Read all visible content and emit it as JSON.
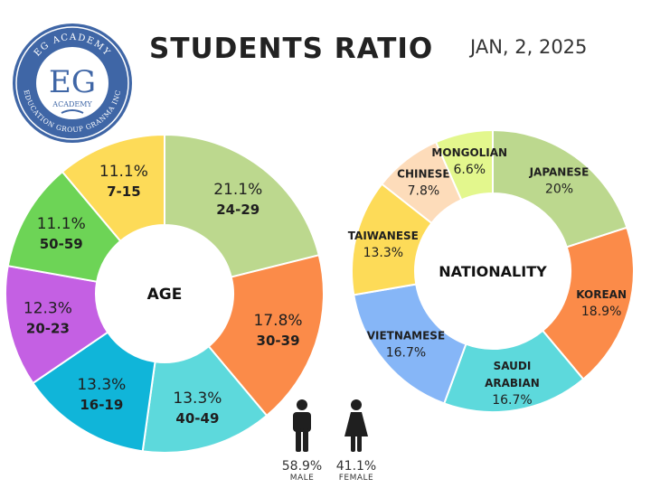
{
  "header": {
    "title": "STUDENTS RATIO",
    "date": "JAN, 2, 2025"
  },
  "logo": {
    "initials": "EG",
    "ring_top": "EG ACADEMY",
    "ring_bottom": "EDUCATION GROUP GRANMA INC",
    "sub": "ACADEMY"
  },
  "gender": {
    "male_pct": "58.9%",
    "male_label": "MALE",
    "female_pct": "41.1%",
    "female_label": "FEMALE"
  },
  "chart_data": [
    {
      "type": "pie",
      "center_label": "AGE",
      "slices": [
        {
          "label": "24-29",
          "pct": "21.1%",
          "value": 21.1,
          "color": "#bcd88e"
        },
        {
          "label": "30-39",
          "pct": "17.8%",
          "value": 17.8,
          "color": "#fb8b49"
        },
        {
          "label": "40-49",
          "pct": "13.3%",
          "value": 13.3,
          "color": "#5dd9dc"
        },
        {
          "label": "16-19",
          "pct": "13.3%",
          "value": 13.3,
          "color": "#10b5d9"
        },
        {
          "label": "20-23",
          "pct": "12.3%",
          "value": 12.3,
          "color": "#c460e3"
        },
        {
          "label": "50-59",
          "pct": "11.1%",
          "value": 11.1,
          "color": "#6dd456"
        },
        {
          "label": "7-15",
          "pct": "11.1%",
          "value": 11.1,
          "color": "#fddb58"
        }
      ]
    },
    {
      "type": "pie",
      "center_label": "NATIONALITY",
      "slices": [
        {
          "label": "JAPANESE",
          "pct": "20%",
          "value": 20,
          "color": "#bcd88e"
        },
        {
          "label": "KOREAN",
          "pct": "18.9%",
          "value": 18.9,
          "color": "#fb8b49"
        },
        {
          "label": "SAUDI\nARABIAN",
          "pct": "16.7%",
          "value": 16.7,
          "color": "#5dd9dc"
        },
        {
          "label": "VIETNAMESE",
          "pct": "16.7%",
          "value": 16.7,
          "color": "#86b6f7"
        },
        {
          "label": "TAIWANESE",
          "pct": "13.3%",
          "value": 13.3,
          "color": "#fddb58"
        },
        {
          "label": "CHINESE",
          "pct": "7.8%",
          "value": 7.8,
          "color": "#fddcba"
        },
        {
          "label": "MONGOLIAN",
          "pct": "6.6%",
          "value": 6.6,
          "color": "#e3f78d"
        }
      ]
    }
  ]
}
